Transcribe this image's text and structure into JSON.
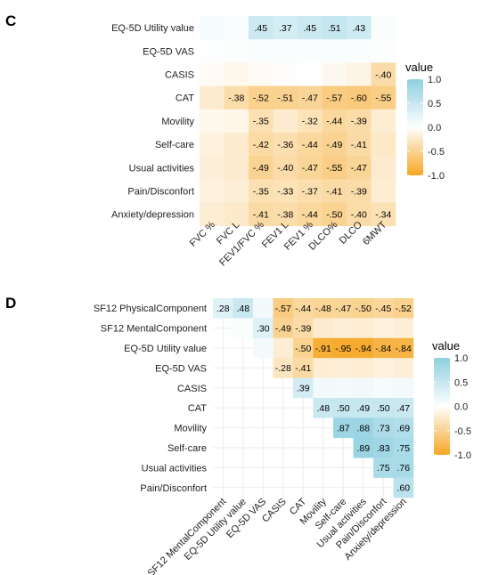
{
  "chart_data": [
    {
      "panel": "C",
      "type": "heatmap",
      "rows": [
        "EQ-5D Utility value",
        "EQ-5D VAS",
        "CASIS",
        "CAT",
        "Movility",
        "Self-care",
        "Usual activities",
        "Pain/Disconfort",
        "Anxiety/depression"
      ],
      "cols": [
        "FVC %",
        "FVC L",
        "FEV1/FVC %",
        "FEV1 L",
        "FEV1 %",
        "DLCO%",
        "DLCO",
        "6MWT"
      ],
      "values": [
        [
          0.08,
          0.06,
          0.45,
          0.37,
          0.45,
          0.51,
          0.43,
          0.04
        ],
        [
          0.02,
          0.03,
          0.05,
          0.05,
          0.04,
          0.05,
          0.05,
          0.03
        ],
        [
          -0.05,
          -0.08,
          -0.05,
          -0.02,
          0.0,
          -0.07,
          -0.12,
          -0.4
        ],
        [
          -0.22,
          -0.38,
          -0.52,
          -0.51,
          -0.47,
          -0.57,
          -0.6,
          -0.55
        ],
        [
          -0.08,
          -0.1,
          -0.35,
          -0.22,
          -0.32,
          -0.44,
          -0.39,
          -0.2
        ],
        [
          -0.15,
          -0.22,
          -0.42,
          -0.36,
          -0.44,
          -0.49,
          -0.41,
          -0.25
        ],
        [
          -0.18,
          -0.22,
          -0.49,
          -0.4,
          -0.47,
          -0.55,
          -0.47,
          -0.22
        ],
        [
          -0.15,
          -0.18,
          -0.35,
          -0.33,
          -0.37,
          -0.41,
          -0.39,
          -0.2
        ],
        [
          -0.2,
          -0.24,
          -0.41,
          -0.38,
          -0.44,
          -0.5,
          -0.4,
          -0.34
        ]
      ],
      "labels": [
        [
          "",
          "",
          ".45",
          ".37",
          ".45",
          ".51",
          ".43",
          ""
        ],
        [
          "",
          "",
          "",
          "",
          "",
          "",
          "",
          ""
        ],
        [
          "",
          "",
          "",
          "",
          "",
          "",
          "",
          "-.40"
        ],
        [
          "",
          "-.38",
          "-.52",
          "-.51",
          "-.47",
          "-.57",
          "-.60",
          "-.55"
        ],
        [
          "",
          "",
          "-.35",
          "",
          "-.32",
          "-.44",
          "-.39",
          ""
        ],
        [
          "",
          "",
          "-.42",
          "-.36",
          "-.44",
          "-.49",
          "-.41",
          ""
        ],
        [
          "",
          "",
          "-.49",
          "-.40",
          "-.47",
          "-.55",
          "-.47",
          ""
        ],
        [
          "",
          "",
          "-.35",
          "-.33",
          "-.37",
          "-.41",
          "-.39",
          ""
        ],
        [
          "",
          "",
          "-.41",
          "-.38",
          "-.44",
          "-.50",
          "-.40",
          "-.34"
        ]
      ],
      "legend": {
        "title": "value",
        "ticks": [
          "1.0",
          "0.5",
          "0.0",
          "-0.5",
          "-1.0"
        ],
        "tick_values": [
          1.0,
          0.5,
          0.0,
          -0.5,
          -1.0
        ],
        "placement": "right"
      },
      "colors": {
        "positive": "#8ecfe0",
        "zero": "#ffffff",
        "negative": "#f5a623"
      }
    },
    {
      "panel": "D",
      "type": "heatmap",
      "rows": [
        "SF12 PhysicalComponent",
        "SF12 MentalComponent",
        "EQ-5D Utility value",
        "EQ-5D VAS",
        "CASIS",
        "CAT",
        "Movility",
        "Self-care",
        "Usual activities",
        "Pain/Disconfort"
      ],
      "cols": [
        "SF12 MentalComponent",
        "EQ-5D Utility value",
        "EQ-5D VAS",
        "CASIS",
        "CAT",
        "Movility",
        "Self-care",
        "Usual activities",
        "Pain/Disconfort",
        "Anxiety/depression"
      ],
      "values": [
        [
          0.28,
          0.48,
          0.12,
          -0.57,
          -0.44,
          -0.48,
          -0.47,
          -0.5,
          -0.45,
          -0.52
        ],
        [
          null,
          0.05,
          0.3,
          -0.49,
          -0.39,
          -0.22,
          -0.18,
          -0.2,
          -0.15,
          -0.18
        ],
        [
          null,
          null,
          0.1,
          -0.2,
          -0.5,
          -0.91,
          -0.95,
          -0.94,
          -0.84,
          -0.84
        ],
        [
          null,
          null,
          null,
          -0.28,
          -0.41,
          -0.2,
          -0.18,
          -0.2,
          -0.15,
          -0.18
        ],
        [
          null,
          null,
          null,
          null,
          0.39,
          0.12,
          0.1,
          0.12,
          0.08,
          0.1
        ],
        [
          null,
          null,
          null,
          null,
          null,
          0.48,
          0.5,
          0.49,
          0.5,
          0.47
        ],
        [
          null,
          null,
          null,
          null,
          null,
          null,
          0.87,
          0.88,
          0.73,
          0.69
        ],
        [
          null,
          null,
          null,
          null,
          null,
          null,
          null,
          0.89,
          0.83,
          0.75
        ],
        [
          null,
          null,
          null,
          null,
          null,
          null,
          null,
          null,
          0.75,
          0.76
        ],
        [
          null,
          null,
          null,
          null,
          null,
          null,
          null,
          null,
          null,
          0.6
        ]
      ],
      "labels": [
        [
          ".28",
          ".48",
          "",
          "-.57",
          "-.44",
          "-.48",
          "-.47",
          "-.50",
          "-.45",
          "-.52"
        ],
        [
          "",
          "",
          ".30",
          "-.49",
          "-.39",
          "",
          "",
          "",
          "",
          ""
        ],
        [
          "",
          "",
          "",
          "",
          "-.50",
          "-.91",
          "-.95",
          "-.94",
          "-.84",
          "-.84"
        ],
        [
          "",
          "",
          "",
          "-.28",
          "-.41",
          "",
          "",
          "",
          "",
          ""
        ],
        [
          "",
          "",
          "",
          "",
          ".39",
          "",
          "",
          "",
          "",
          ""
        ],
        [
          "",
          "",
          "",
          "",
          "",
          ".48",
          ".50",
          ".49",
          ".50",
          ".47"
        ],
        [
          "",
          "",
          "",
          "",
          "",
          "",
          ".87",
          ".88",
          ".73",
          ".69"
        ],
        [
          "",
          "",
          "",
          "",
          "",
          "",
          "",
          ".89",
          ".83",
          ".75"
        ],
        [
          "",
          "",
          "",
          "",
          "",
          "",
          "",
          "",
          ".75",
          ".76"
        ],
        [
          "",
          "",
          "",
          "",
          "",
          "",
          "",
          "",
          "",
          ".60"
        ]
      ],
      "legend": {
        "title": "value",
        "ticks": [
          "1.0",
          "0.5",
          "0.0",
          "-0.5",
          "-1.0"
        ],
        "tick_values": [
          1.0,
          0.5,
          0.0,
          -0.5,
          -1.0
        ],
        "placement": "right"
      },
      "colors": {
        "positive": "#8ecfe0",
        "zero": "#ffffff",
        "negative": "#f5a623"
      }
    }
  ]
}
